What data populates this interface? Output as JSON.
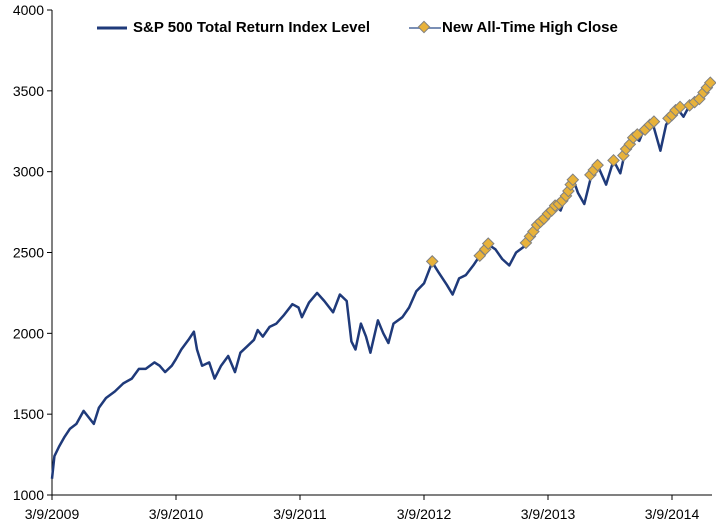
{
  "chart_data": {
    "type": "line",
    "title": "",
    "xlabel": "",
    "ylabel": "",
    "ylim": [
      1000,
      4000
    ],
    "y_ticks": [
      "1000",
      "1500",
      "2000",
      "2500",
      "3000",
      "3500",
      "4000"
    ],
    "x_ticks": [
      "3/9/2009",
      "3/9/2010",
      "3/9/2011",
      "3/9/2012",
      "3/9/2013",
      "3/9/2014"
    ],
    "grid": false,
    "legend_position": "top",
    "series": [
      {
        "name": "S&P 500 Total Return Index Level",
        "color": "#1f3a7a",
        "points": [
          [
            "2009-03-09",
            1100
          ],
          [
            "2009-03-16",
            1240
          ],
          [
            "2009-03-30",
            1300
          ],
          [
            "2009-04-15",
            1360
          ],
          [
            "2009-05-01",
            1410
          ],
          [
            "2009-05-20",
            1440
          ],
          [
            "2009-06-10",
            1520
          ],
          [
            "2009-06-25",
            1480
          ],
          [
            "2009-07-10",
            1440
          ],
          [
            "2009-07-25",
            1540
          ],
          [
            "2009-08-15",
            1600
          ],
          [
            "2009-09-10",
            1640
          ],
          [
            "2009-10-05",
            1690
          ],
          [
            "2009-10-30",
            1720
          ],
          [
            "2009-11-20",
            1780
          ],
          [
            "2009-12-10",
            1780
          ],
          [
            "2010-01-05",
            1820
          ],
          [
            "2010-01-20",
            1800
          ],
          [
            "2010-02-05",
            1760
          ],
          [
            "2010-02-25",
            1800
          ],
          [
            "2010-03-09",
            1840
          ],
          [
            "2010-03-25",
            1900
          ],
          [
            "2010-04-15",
            1960
          ],
          [
            "2010-05-01",
            2010
          ],
          [
            "2010-05-10",
            1900
          ],
          [
            "2010-05-25",
            1800
          ],
          [
            "2010-06-15",
            1820
          ],
          [
            "2010-07-01",
            1720
          ],
          [
            "2010-07-20",
            1800
          ],
          [
            "2010-08-10",
            1860
          ],
          [
            "2010-08-30",
            1760
          ],
          [
            "2010-09-15",
            1880
          ],
          [
            "2010-10-05",
            1920
          ],
          [
            "2010-10-25",
            1960
          ],
          [
            "2010-11-05",
            2020
          ],
          [
            "2010-11-20",
            1980
          ],
          [
            "2010-12-10",
            2040
          ],
          [
            "2010-12-30",
            2060
          ],
          [
            "2011-01-20",
            2110
          ],
          [
            "2011-02-15",
            2180
          ],
          [
            "2011-03-05",
            2160
          ],
          [
            "2011-03-15",
            2100
          ],
          [
            "2011-04-05",
            2190
          ],
          [
            "2011-04-29",
            2250
          ],
          [
            "2011-05-20",
            2200
          ],
          [
            "2011-06-15",
            2130
          ],
          [
            "2011-07-05",
            2240
          ],
          [
            "2011-07-25",
            2200
          ],
          [
            "2011-08-08",
            1950
          ],
          [
            "2011-08-20",
            1900
          ],
          [
            "2011-09-05",
            2060
          ],
          [
            "2011-09-20",
            1980
          ],
          [
            "2011-10-03",
            1880
          ],
          [
            "2011-10-25",
            2080
          ],
          [
            "2011-11-10",
            2000
          ],
          [
            "2011-11-25",
            1940
          ],
          [
            "2011-12-10",
            2060
          ],
          [
            "2012-01-05",
            2100
          ],
          [
            "2012-01-25",
            2160
          ],
          [
            "2012-02-15",
            2260
          ],
          [
            "2012-03-09",
            2310
          ],
          [
            "2012-04-02",
            2440
          ],
          [
            "2012-04-20",
            2380
          ],
          [
            "2012-05-15",
            2300
          ],
          [
            "2012-06-01",
            2240
          ],
          [
            "2012-06-20",
            2340
          ],
          [
            "2012-07-10",
            2360
          ],
          [
            "2012-08-01",
            2420
          ],
          [
            "2012-08-20",
            2480
          ],
          [
            "2012-09-14",
            2550
          ],
          [
            "2012-10-05",
            2520
          ],
          [
            "2012-10-25",
            2460
          ],
          [
            "2012-11-15",
            2420
          ],
          [
            "2012-12-05",
            2500
          ],
          [
            "2012-12-31",
            2540
          ],
          [
            "2013-01-15",
            2600
          ],
          [
            "2013-02-05",
            2680
          ],
          [
            "2013-02-25",
            2700
          ],
          [
            "2013-03-09",
            2740
          ],
          [
            "2013-03-30",
            2790
          ],
          [
            "2013-04-15",
            2760
          ],
          [
            "2013-05-01",
            2850
          ],
          [
            "2013-05-21",
            2960
          ],
          [
            "2013-06-05",
            2870
          ],
          [
            "2013-06-24",
            2800
          ],
          [
            "2013-07-15",
            2980
          ],
          [
            "2013-08-02",
            3040
          ],
          [
            "2013-08-27",
            2920
          ],
          [
            "2013-09-18",
            3070
          ],
          [
            "2013-10-08",
            2990
          ],
          [
            "2013-10-25",
            3150
          ],
          [
            "2013-11-15",
            3220
          ],
          [
            "2013-12-03",
            3190
          ],
          [
            "2013-12-20",
            3280
          ],
          [
            "2014-01-10",
            3310
          ],
          [
            "2014-02-03",
            3130
          ],
          [
            "2014-02-20",
            3290
          ],
          [
            "2014-03-09",
            3350
          ],
          [
            "2014-03-25",
            3390
          ],
          [
            "2014-04-12",
            3340
          ],
          [
            "2014-04-30",
            3410
          ],
          [
            "2014-05-20",
            3440
          ],
          [
            "2014-06-10",
            3500
          ],
          [
            "2014-06-30",
            3550
          ]
        ]
      },
      {
        "name": "New All-Time High Close",
        "color": "#e8b23a",
        "edge_color": "#808080",
        "points": [
          [
            "2012-04-02",
            2445
          ],
          [
            "2012-08-20",
            2480
          ],
          [
            "2012-09-05",
            2520
          ],
          [
            "2012-09-14",
            2555
          ],
          [
            "2013-01-03",
            2560
          ],
          [
            "2013-01-15",
            2600
          ],
          [
            "2013-01-25",
            2630
          ],
          [
            "2013-02-05",
            2670
          ],
          [
            "2013-02-15",
            2690
          ],
          [
            "2013-02-25",
            2710
          ],
          [
            "2013-03-09",
            2740
          ],
          [
            "2013-03-20",
            2760
          ],
          [
            "2013-03-30",
            2790
          ],
          [
            "2013-04-10",
            2800
          ],
          [
            "2013-04-20",
            2820
          ],
          [
            "2013-05-01",
            2850
          ],
          [
            "2013-05-08",
            2880
          ],
          [
            "2013-05-15",
            2920
          ],
          [
            "2013-05-21",
            2950
          ],
          [
            "2013-07-12",
            2980
          ],
          [
            "2013-07-22",
            3010
          ],
          [
            "2013-08-02",
            3040
          ],
          [
            "2013-09-18",
            3070
          ],
          [
            "2013-10-17",
            3100
          ],
          [
            "2013-10-25",
            3140
          ],
          [
            "2013-11-05",
            3170
          ],
          [
            "2013-11-15",
            3210
          ],
          [
            "2013-11-27",
            3230
          ],
          [
            "2013-12-20",
            3260
          ],
          [
            "2014-01-03",
            3290
          ],
          [
            "2014-01-15",
            3310
          ],
          [
            "2014-02-27",
            3330
          ],
          [
            "2014-03-09",
            3350
          ],
          [
            "2014-03-20",
            3380
          ],
          [
            "2014-04-02",
            3400
          ],
          [
            "2014-04-30",
            3410
          ],
          [
            "2014-05-15",
            3430
          ],
          [
            "2014-05-29",
            3450
          ],
          [
            "2014-06-10",
            3490
          ],
          [
            "2014-06-20",
            3520
          ],
          [
            "2014-06-30",
            3550
          ]
        ]
      }
    ]
  }
}
